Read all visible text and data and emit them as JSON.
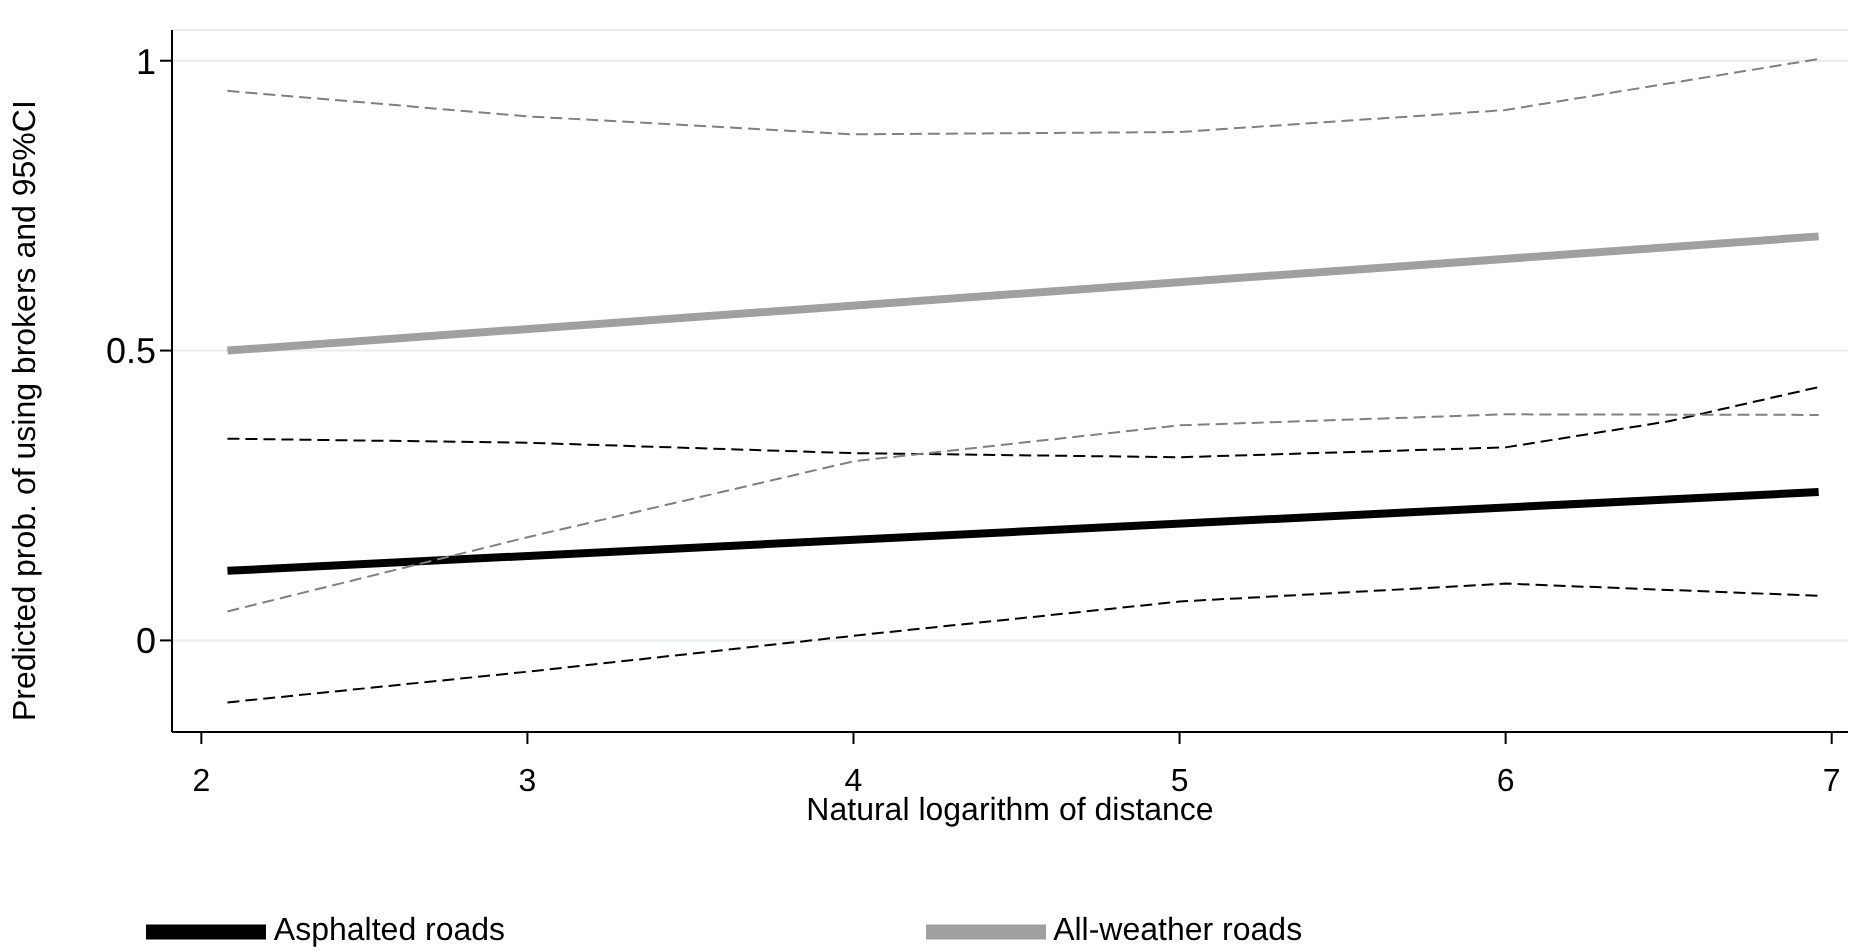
{
  "chart_data": {
    "type": "line",
    "xlabel": "Natural logarithm of distance",
    "ylabel": "Predicted prob. of using brokers and 95%CI",
    "xlim": [
      1.91,
      7.05
    ],
    "xticks": [
      2,
      3,
      4,
      5,
      6,
      7
    ],
    "ylim": [
      -0.158,
      1.053
    ],
    "yticks": [
      0,
      0.5,
      1
    ],
    "grid": "y",
    "legend": "bottom",
    "marker": "none",
    "series": [
      {
        "name": "Asphalted roads",
        "color": "#000000",
        "line_style": "solid",
        "x": [
          2.08,
          6.96
        ],
        "values": [
          0.12,
          0.256
        ]
      },
      {
        "name": "All-weather roads",
        "color": "#a0a0a0",
        "line_style": "solid",
        "x": [
          2.08,
          6.96
        ],
        "values": [
          0.5,
          0.697
        ]
      },
      {
        "color": "#000000",
        "line_style": "dashed",
        "x": [
          2.08,
          3,
          4,
          5,
          6,
          6.96
        ],
        "values": [
          -0.107,
          -0.054,
          0.008,
          0.067,
          0.098,
          0.077
        ]
      },
      {
        "color": "#000000",
        "line_style": "dashed",
        "x": [
          2.08,
          3,
          4,
          5,
          6,
          6.5,
          6.96
        ],
        "values": [
          0.348,
          0.341,
          0.323,
          0.316,
          0.333,
          0.378,
          0.437
        ]
      },
      {
        "color": "#808080",
        "line_style": "dashed",
        "x": [
          2.08,
          3,
          4,
          5,
          6,
          6.96
        ],
        "values": [
          0.05,
          0.178,
          0.309,
          0.371,
          0.39,
          0.389
        ]
      },
      {
        "color": "#808080",
        "line_style": "dashed",
        "x": [
          2.08,
          3,
          4,
          5,
          6,
          6.96
        ],
        "values": [
          0.948,
          0.904,
          0.873,
          0.877,
          0.915,
          1.003
        ]
      }
    ]
  }
}
